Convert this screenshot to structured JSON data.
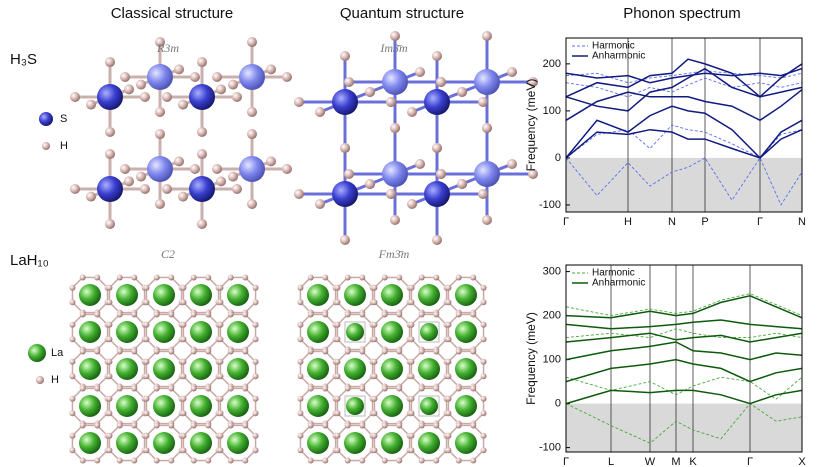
{
  "headers": [
    "Classical structure",
    "Quantum structure",
    "Phonon spectrum"
  ],
  "materials": [
    {
      "name": "H₃S",
      "atoms": [
        "S",
        "H"
      ],
      "classical": "R3m",
      "quantum": "Im3̄m"
    },
    {
      "name": "LaH₁₀",
      "atoms": [
        "La",
        "H"
      ],
      "classical": "C2",
      "quantum": "Fm3̄m"
    }
  ],
  "chart_data": [
    {
      "type": "line",
      "ylabel": "Frequency (meV)",
      "ylim": [
        -115,
        255
      ],
      "yticks": [
        -100,
        0,
        100,
        200
      ],
      "xlim": [
        0,
        2.36
      ],
      "xticks": [
        {
          "value": 0,
          "label": "Γ"
        },
        {
          "value": 0.62,
          "label": "H"
        },
        {
          "value": 1.06,
          "label": "N"
        },
        {
          "value": 1.39,
          "label": "P"
        },
        {
          "value": 1.94,
          "label": "Γ"
        },
        {
          "value": 2.36,
          "label": "N"
        }
      ],
      "legend": "upper left",
      "x": [
        0,
        0.31,
        0.62,
        0.84,
        1.06,
        1.22,
        1.39,
        1.66,
        1.94,
        2.15,
        2.36
      ],
      "series": [
        {
          "name": "Harmonic",
          "color": "#5b6ff0",
          "dash": true,
          "bands": [
            [
              0,
              -80,
              -10,
              -60,
              -30,
              -20,
              0,
              -90,
              0,
              -100,
              -30
            ],
            [
              0,
              50,
              60,
              20,
              70,
              60,
              55,
              30,
              0,
              50,
              60
            ],
            [
              160,
              150,
              130,
              150,
              140,
              155,
              170,
              150,
              160,
              150,
              160
            ],
            [
              175,
              180,
              160,
              170,
              175,
              180,
              185,
              180,
              175,
              170,
              180
            ]
          ]
        },
        {
          "name": "Anharmonic",
          "color": "#111a80",
          "dash": false,
          "bands": [
            [
              0,
              55,
              50,
              60,
              55,
              40,
              40,
              20,
              0,
              40,
              60
            ],
            [
              0,
              80,
              55,
              90,
              110,
              100,
              95,
              60,
              0,
              55,
              80
            ],
            [
              80,
              120,
              140,
              130,
              130,
              130,
              120,
              110,
              80,
              110,
              145
            ],
            [
              130,
              110,
              100,
              140,
              150,
              170,
              190,
              150,
              130,
              140,
              150
            ],
            [
              130,
              160,
              150,
              175,
              180,
              210,
              200,
              180,
              130,
              170,
              200
            ],
            [
              180,
              170,
              175,
              160,
              170,
              175,
              180,
              175,
              180,
              175,
              190
            ]
          ]
        }
      ]
    },
    {
      "type": "line",
      "ylabel": "Frequency (meV)",
      "ylim": [
        -110,
        315
      ],
      "yticks": [
        -100,
        0,
        100,
        200,
        300
      ],
      "xlim": [
        0,
        2.36
      ],
      "xticks": [
        {
          "value": 0,
          "label": "Γ"
        },
        {
          "value": 0.45,
          "label": "L"
        },
        {
          "value": 0.84,
          "label": "W"
        },
        {
          "value": 1.1,
          "label": "M"
        },
        {
          "value": 1.27,
          "label": "K"
        },
        {
          "value": 1.84,
          "label": "Γ"
        },
        {
          "value": 2.36,
          "label": "X"
        }
      ],
      "legend": "upper left",
      "x": [
        0,
        0.45,
        0.84,
        1.1,
        1.27,
        1.55,
        1.84,
        2.1,
        2.36
      ],
      "series": [
        {
          "name": "Harmonic",
          "color": "#4aa83a",
          "dash": true,
          "bands": [
            [
              0,
              -50,
              -90,
              -40,
              -60,
              -80,
              0,
              -40,
              -30
            ],
            [
              60,
              30,
              50,
              20,
              40,
              60,
              50,
              10,
              60
            ],
            [
              150,
              160,
              150,
              170,
              160,
              150,
              150,
              160,
              150
            ],
            [
              220,
              200,
              215,
              205,
              210,
              235,
              250,
              225,
              200
            ]
          ]
        },
        {
          "name": "Anharmonic",
          "color": "#0d5a0d",
          "dash": false,
          "bands": [
            [
              0,
              30,
              25,
              30,
              30,
              20,
              0,
              20,
              30
            ],
            [
              50,
              80,
              90,
              100,
              90,
              80,
              50,
              70,
              80
            ],
            [
              100,
              120,
              130,
              140,
              120,
              115,
              100,
              115,
              110
            ],
            [
              140,
              150,
              160,
              145,
              150,
              155,
              140,
              150,
              160
            ],
            [
              180,
              170,
              175,
              180,
              185,
              190,
              180,
              175,
              170
            ],
            [
              200,
              195,
              210,
              200,
              205,
              230,
              245,
              220,
              195
            ]
          ]
        }
      ]
    }
  ]
}
